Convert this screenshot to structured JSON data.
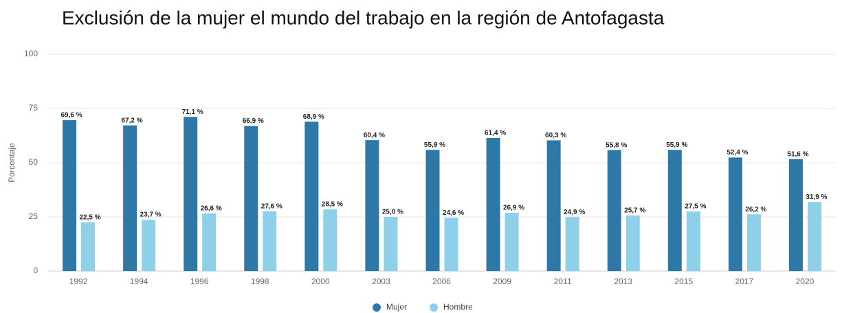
{
  "chart_data": {
    "type": "bar",
    "title": "Exclusión de la mujer el mundo del trabajo en la región de Antofagasta",
    "y_label": "Porcentaje",
    "categories": [
      "1992",
      "1994",
      "1996",
      "1998",
      "2000",
      "2003",
      "2006",
      "2009",
      "2011",
      "2013",
      "2015",
      "2017",
      "2020"
    ],
    "series": [
      {
        "name": "Mujer",
        "color": "#2e78a8",
        "values": [
          69.6,
          67.2,
          71.1,
          66.9,
          68.9,
          60.4,
          55.9,
          61.4,
          60.3,
          55.8,
          55.9,
          52.4,
          51.6
        ],
        "value_labels": [
          "69,6 %",
          "67,2 %",
          "71,1 %",
          "66,9 %",
          "68,9 %",
          "60,4 %",
          "55,9 %",
          "61,4 %",
          "60,3 %",
          "55,8 %",
          "55,9 %",
          "52,4 %",
          "51,6 %"
        ]
      },
      {
        "name": "Hombre",
        "color": "#8ecfea",
        "values": [
          22.5,
          23.7,
          26.6,
          27.6,
          28.5,
          25.0,
          24.6,
          26.9,
          24.9,
          25.7,
          27.5,
          26.2,
          31.9
        ],
        "value_labels": [
          "22,5 %",
          "23,7 %",
          "26,6 %",
          "27,6 %",
          "28,5 %",
          "25,0 %",
          "24,6 %",
          "26,9 %",
          "24,9 %",
          "25,7 %",
          "27,5 %",
          "26,2 %",
          "31,9 %"
        ]
      }
    ],
    "ylim": [
      0,
      100
    ],
    "yticks": [
      0,
      25,
      50,
      75,
      100
    ],
    "grid": true
  }
}
